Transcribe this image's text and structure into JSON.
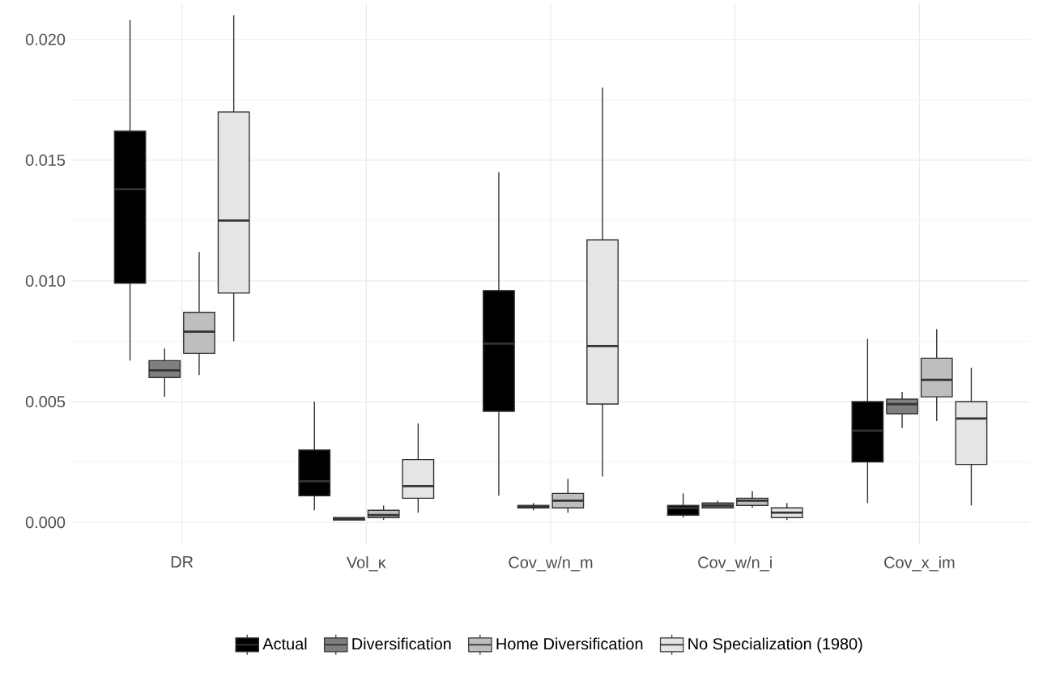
{
  "chart_data": {
    "type": "box",
    "categories": [
      "DR",
      "Vol_κ",
      "Cov_w/n_m",
      "Cov_w/n_i",
      "Cov_x_im"
    ],
    "ylim": [
      -0.0009,
      0.0215
    ],
    "yticks": [
      {
        "value": 0,
        "label": "0.000"
      },
      {
        "value": 0.005,
        "label": "0.005"
      },
      {
        "value": 0.01,
        "label": "0.010"
      },
      {
        "value": 0.015,
        "label": "0.015"
      },
      {
        "value": 0.02,
        "label": "0.020"
      }
    ],
    "grid": true,
    "legend": "bottom",
    "series": [
      {
        "name": "Actual",
        "color": "#000000",
        "boxes": [
          {
            "low": 0.0067,
            "q1": 0.0099,
            "median": 0.0138,
            "q3": 0.0162,
            "high": 0.0208
          },
          {
            "low": 0.0005,
            "q1": 0.0011,
            "median": 0.0017,
            "q3": 0.003,
            "high": 0.005
          },
          {
            "low": 0.0011,
            "q1": 0.0046,
            "median": 0.0074,
            "q3": 0.0096,
            "high": 0.0145
          },
          {
            "low": 0.0002,
            "q1": 0.0003,
            "median": 0.0006,
            "q3": 0.0007,
            "high": 0.0012
          },
          {
            "low": 0.0008,
            "q1": 0.0025,
            "median": 0.0038,
            "q3": 0.005,
            "high": 0.0076
          }
        ]
      },
      {
        "name": "Diversification",
        "color": "#7f7f7f",
        "boxes": [
          {
            "low": 0.0052,
            "q1": 0.006,
            "median": 0.0063,
            "q3": 0.0067,
            "high": 0.0072
          },
          {
            "low": 0.0001,
            "q1": 0.0001,
            "median": 0.00015,
            "q3": 0.0002,
            "high": 0.0002
          },
          {
            "low": 0.0005,
            "q1": 0.0006,
            "median": 0.00065,
            "q3": 0.0007,
            "high": 0.0008
          },
          {
            "low": 0.0006,
            "q1": 0.0006,
            "median": 0.0007,
            "q3": 0.0008,
            "high": 0.0009
          },
          {
            "low": 0.0039,
            "q1": 0.0045,
            "median": 0.0049,
            "q3": 0.0051,
            "high": 0.0054
          }
        ]
      },
      {
        "name": "Home Diversification",
        "color": "#bebebe",
        "boxes": [
          {
            "low": 0.0061,
            "q1": 0.007,
            "median": 0.0079,
            "q3": 0.0087,
            "high": 0.0112
          },
          {
            "low": 0.0001,
            "q1": 0.0002,
            "median": 0.0003,
            "q3": 0.0005,
            "high": 0.0007
          },
          {
            "low": 0.0004,
            "q1": 0.0006,
            "median": 0.0009,
            "q3": 0.0012,
            "high": 0.0018
          },
          {
            "low": 0.0006,
            "q1": 0.0007,
            "median": 0.0009,
            "q3": 0.001,
            "high": 0.0013
          },
          {
            "low": 0.0042,
            "q1": 0.0052,
            "median": 0.0059,
            "q3": 0.0068,
            "high": 0.008
          }
        ]
      },
      {
        "name": "No Specialization (1980)",
        "color": "#e5e5e5",
        "boxes": [
          {
            "low": 0.0075,
            "q1": 0.0095,
            "median": 0.0125,
            "q3": 0.017,
            "high": 0.021
          },
          {
            "low": 0.0004,
            "q1": 0.001,
            "median": 0.0015,
            "q3": 0.0026,
            "high": 0.0041
          },
          {
            "low": 0.0019,
            "q1": 0.0049,
            "median": 0.0073,
            "q3": 0.0117,
            "high": 0.018
          },
          {
            "low": 0.0001,
            "q1": 0.0002,
            "median": 0.0004,
            "q3": 0.0006,
            "high": 0.0008
          },
          {
            "low": 0.0007,
            "q1": 0.0024,
            "median": 0.0043,
            "q3": 0.005,
            "high": 0.0064
          }
        ]
      }
    ]
  }
}
